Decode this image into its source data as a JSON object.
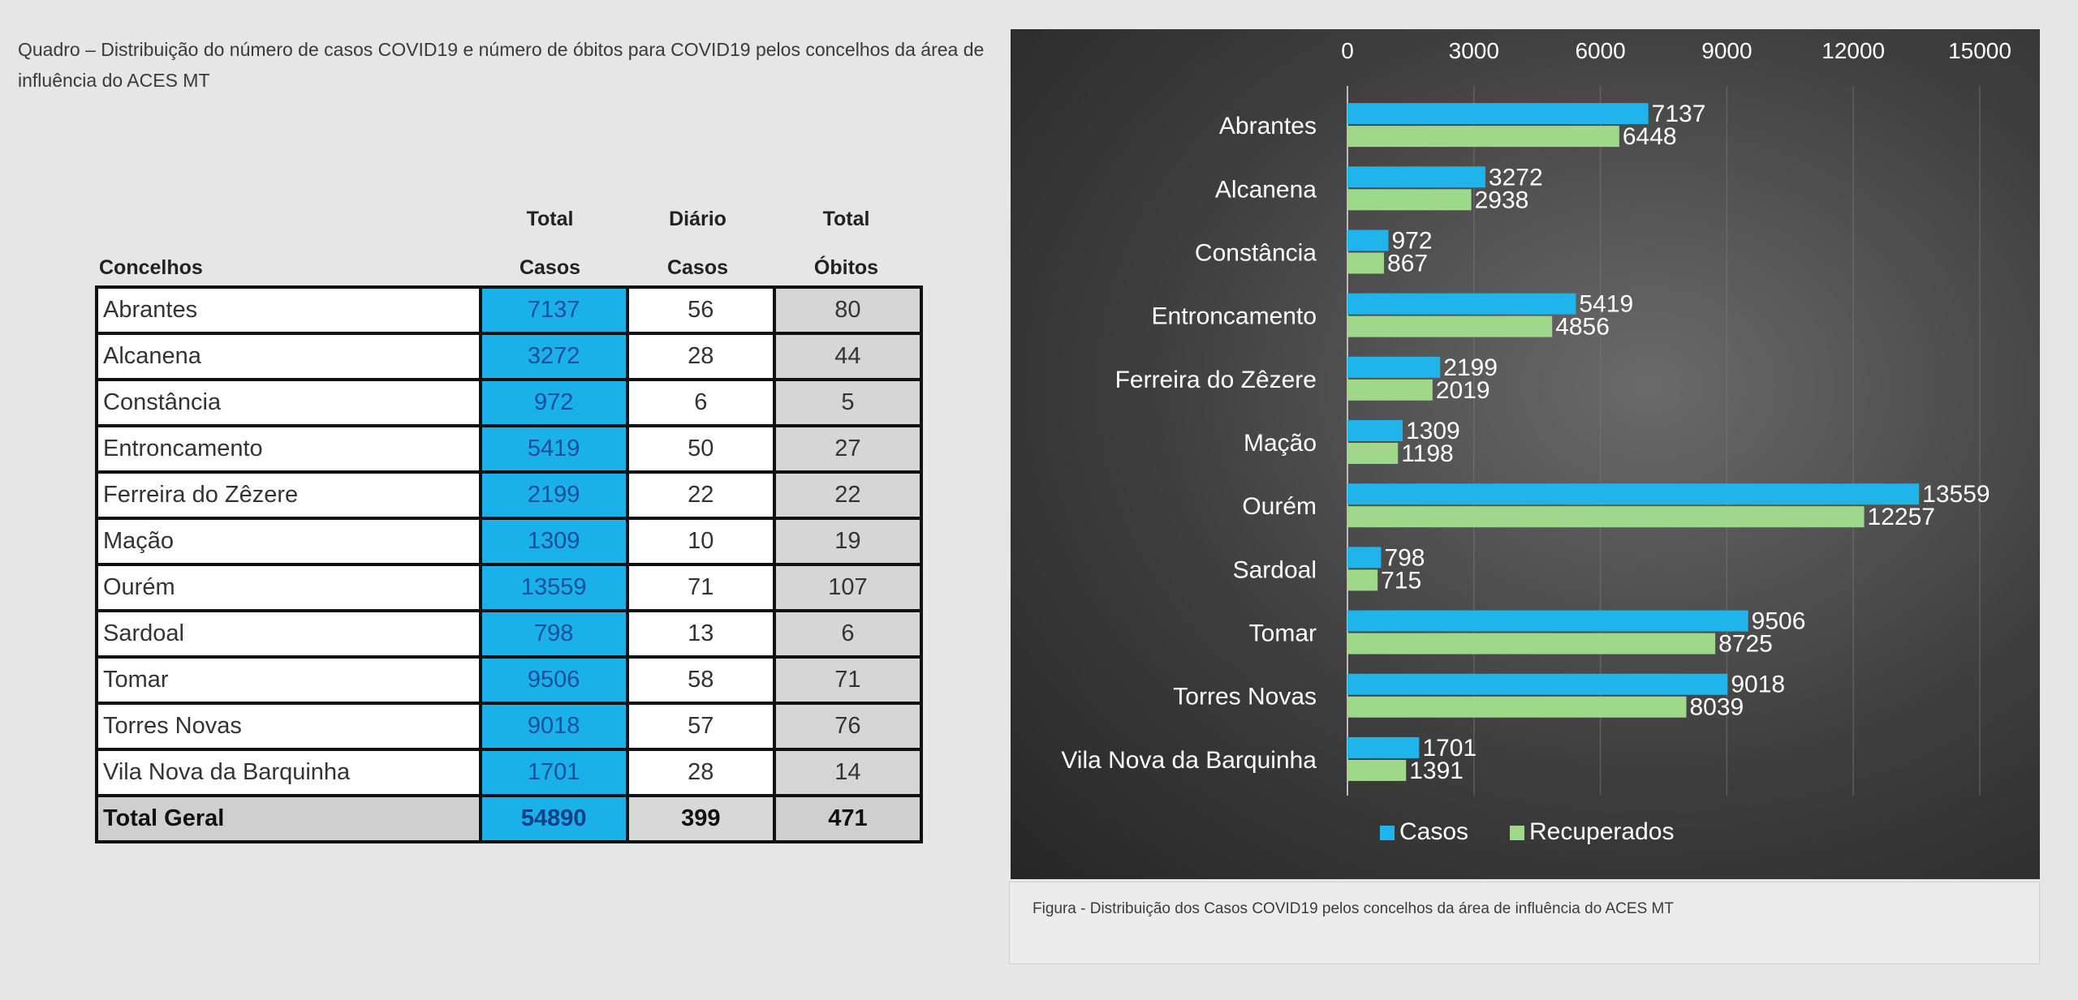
{
  "quadro_title": "Quadro – Distribuição do número de casos COVID19 e número de óbitos para COVID19 pelos concelhos da área de influência do ACES MT",
  "table": {
    "headers": {
      "concelhos": "Concelhos",
      "total_casos_1": "Total",
      "total_casos_2": "Casos",
      "diario_casos_1": "Diário",
      "diario_casos_2": "Casos",
      "total_obitos_1": "Total",
      "total_obitos_2": "Óbitos"
    },
    "rows": [
      {
        "name": "Abrantes",
        "casos": "7137",
        "diario": "56",
        "obitos": "80"
      },
      {
        "name": "Alcanena",
        "casos": "3272",
        "diario": "28",
        "obitos": "44"
      },
      {
        "name": "Constância",
        "casos": "972",
        "diario": "6",
        "obitos": "5"
      },
      {
        "name": "Entroncamento",
        "casos": "5419",
        "diario": "50",
        "obitos": "27"
      },
      {
        "name": "Ferreira do Zêzere",
        "casos": "2199",
        "diario": "22",
        "obitos": "22"
      },
      {
        "name": "Mação",
        "casos": "1309",
        "diario": "10",
        "obitos": "19"
      },
      {
        "name": "Ourém",
        "casos": "13559",
        "diario": "71",
        "obitos": "107"
      },
      {
        "name": "Sardoal",
        "casos": "798",
        "diario": "13",
        "obitos": "6"
      },
      {
        "name": "Tomar",
        "casos": "9506",
        "diario": "58",
        "obitos": "71"
      },
      {
        "name": "Torres Novas",
        "casos": "9018",
        "diario": "57",
        "obitos": "76"
      },
      {
        "name": "Vila Nova da Barquinha",
        "casos": "1701",
        "diario": "28",
        "obitos": "14"
      }
    ],
    "total": {
      "name": "Total Geral",
      "casos": "54890",
      "diario": "399",
      "obitos": "471"
    }
  },
  "chart_data": {
    "type": "bar",
    "orientation": "horizontal",
    "categories": [
      "Abrantes",
      "Alcanena",
      "Constância",
      "Entroncamento",
      "Ferreira do Zêzere",
      "Mação",
      "Ourém",
      "Sardoal",
      "Tomar",
      "Torres Novas",
      "Vila Nova da Barquinha"
    ],
    "series": [
      {
        "name": "Casos",
        "color": "#1fb4ea",
        "values": [
          7137,
          3272,
          972,
          5419,
          2199,
          1309,
          13559,
          798,
          9506,
          9018,
          1701
        ]
      },
      {
        "name": "Recuperados",
        "color": "#9fd88a",
        "values": [
          6448,
          2938,
          867,
          4856,
          2019,
          1198,
          12257,
          715,
          8725,
          8039,
          1391
        ]
      }
    ],
    "xlim": [
      0,
      15000
    ],
    "xticks": [
      0,
      3000,
      6000,
      9000,
      12000,
      15000
    ],
    "axis_position": "top",
    "grid": true,
    "legend": "bottom",
    "background": "#3b3b3b",
    "label_color": "#ffffff"
  },
  "figure_caption": "Figura - Distribuição dos Casos COVID19 pelos concelhos da área de influência do ACES MT"
}
